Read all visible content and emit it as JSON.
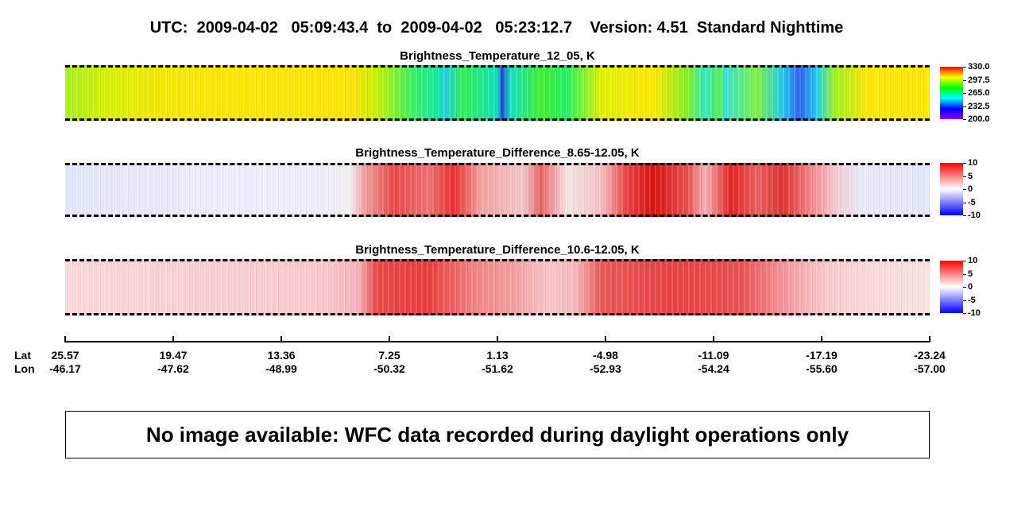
{
  "header": {
    "title": "UTC:  2009-04-02   05:09:43.4  to  2009-04-02   05:23:12.7    Version: 4.51  Standard Nighttime"
  },
  "panels": [
    {
      "title": "Brightness_Temperature_12_05, K",
      "colorbar": {
        "colors": [
          "#8800ff",
          "#0000ff",
          "#00ffff",
          "#00ff00",
          "#ffff00",
          "#ff0000"
        ],
        "ticks": [
          {
            "value": 330,
            "label": "330.0"
          },
          {
            "value": 297.5,
            "label": "297.5"
          },
          {
            "value": 265,
            "label": "265.0"
          },
          {
            "value": 232.5,
            "label": "232.5"
          },
          {
            "value": 200,
            "label": "200.0"
          }
        ]
      }
    },
    {
      "title": "Brightness_Temperature_Difference_8.65-12.05, K",
      "colorbar": {
        "colors": [
          "#0000ff",
          "#ffffff",
          "#ff0000"
        ],
        "ticks": [
          10,
          5,
          0,
          -5,
          -10
        ]
      }
    },
    {
      "title": "Brightness_Temperature_Difference_10.6-12.05, K",
      "colorbar": {
        "colors": [
          "#0000ff",
          "#ffffff",
          "#ff0000"
        ],
        "ticks": [
          10,
          5,
          0,
          -5,
          -10
        ]
      }
    }
  ],
  "axis": {
    "lat_label": "Lat",
    "lon_label": "Lon",
    "lat": [
      "25.57",
      "19.47",
      "13.36",
      "7.25",
      "1.13",
      "-4.98",
      "-11.09",
      "-17.19",
      "-23.24"
    ],
    "lon": [
      "-46.17",
      "-47.62",
      "-48.99",
      "-50.32",
      "-51.62",
      "-52.93",
      "-54.24",
      "-55.60",
      "-57.00"
    ]
  },
  "message": "No image available: WFC data recorded during daylight operations only"
}
